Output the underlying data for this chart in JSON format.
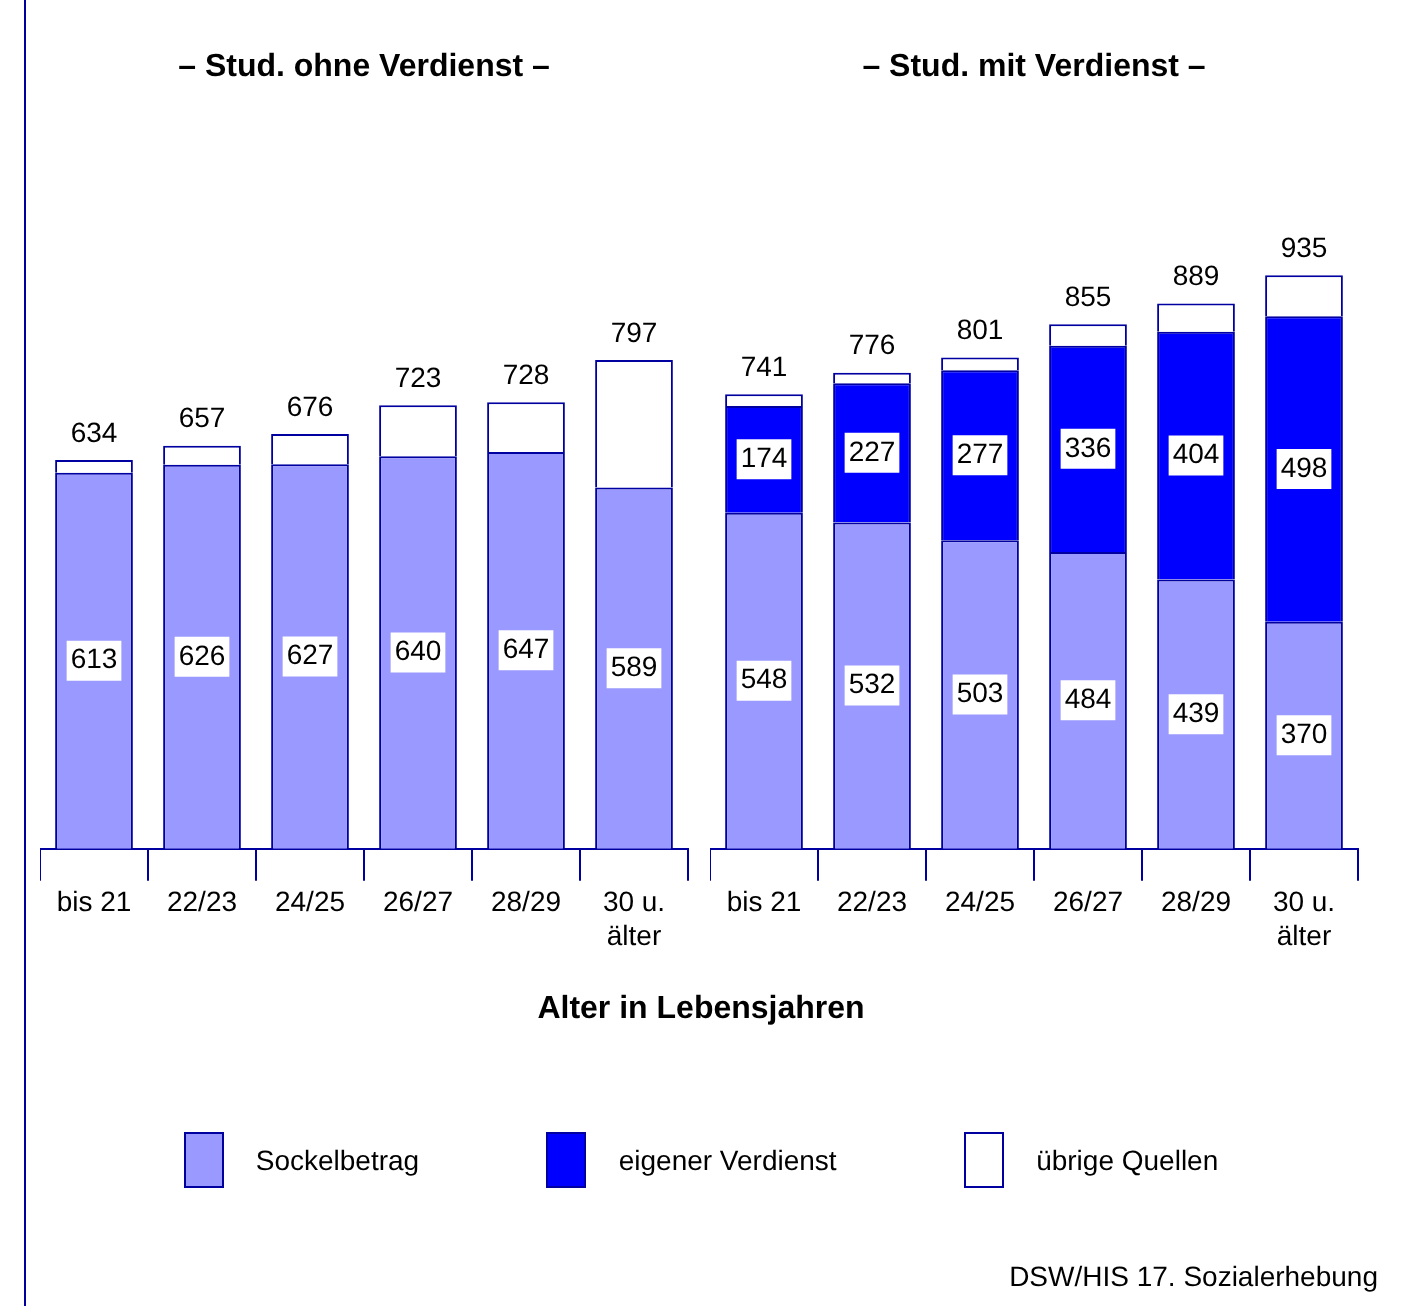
{
  "chart_data": [
    {
      "type": "bar",
      "title": "– Stud. ohne Verdienst –",
      "xlabel": "Alter in Lebensjahren",
      "stacked": true,
      "categories": [
        "bis 21",
        "22/23",
        "24/25",
        "26/27",
        "28/29",
        "30 u. älter"
      ],
      "series": [
        {
          "color": "#9999ff",
          "values": [
            613,
            626,
            627,
            640,
            647,
            589
          ],
          "value_labels": [
            "613",
            "626",
            "627",
            "640",
            "647",
            "589"
          ]
        },
        {
          "color": "#ffffff",
          "values": [
            21,
            31,
            49,
            83,
            81,
            208
          ]
        }
      ],
      "totals": [
        "634",
        "657",
        "676",
        "723",
        "728",
        "797"
      ]
    },
    {
      "type": "bar",
      "title": "– Stud. mit Verdienst –",
      "stacked": true,
      "legend": "bottom",
      "categories": [
        "bis 21",
        "22/23",
        "24/25",
        "26/27",
        "28/29",
        "30 u. älter"
      ],
      "series": [
        {
          "name": "Sockelbetrag",
          "color": "#9999ff",
          "values": [
            548,
            532,
            503,
            484,
            439,
            370
          ],
          "value_labels": [
            "548",
            "532",
            "503",
            "484",
            "439",
            "370"
          ]
        },
        {
          "name": "eigener Verdienst",
          "color": "#0000ff",
          "values": [
            174,
            227,
            277,
            336,
            404,
            498
          ],
          "value_labels": [
            "174",
            "227",
            "277",
            "336",
            "404",
            "498"
          ]
        },
        {
          "name": "übrige Quellen",
          "color": "#ffffff",
          "values": [
            19,
            17,
            21,
            35,
            46,
            67
          ]
        }
      ],
      "totals": [
        "741",
        "776",
        "801",
        "855",
        "889",
        "935"
      ],
      "annotations": [
        "DSW/HIS 17. Sozialerhebung"
      ]
    }
  ]
}
